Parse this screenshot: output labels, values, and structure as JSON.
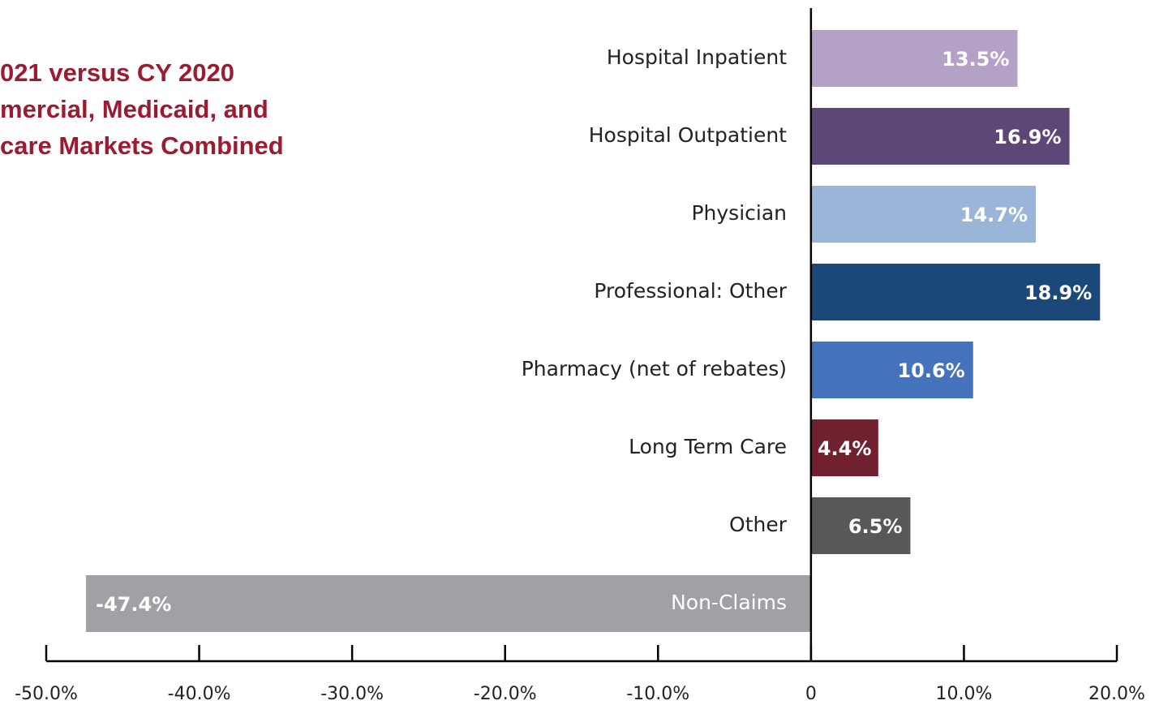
{
  "chart_data": {
    "type": "barh",
    "title": [
      "021 versus CY 2020",
      "mercial, Medicaid, and",
      "care Markets Combined"
    ],
    "categories": [
      "Hospital Inpatient",
      "Hospital Outpatient",
      "Physician",
      "Professional: Other",
      "Pharmacy (net of rebates)",
      "Long Term Care",
      "Other",
      "Non-Claims"
    ],
    "values": [
      13.5,
      16.9,
      14.7,
      18.9,
      10.6,
      4.4,
      6.5,
      -47.4
    ],
    "value_labels": [
      "13.5%",
      "16.9%",
      "14.7%",
      "18.9%",
      "10.6%",
      "4.4%",
      "6.5%",
      "-47.4%"
    ],
    "colors": [
      "#b3a1c7",
      "#5c4776",
      "#9bb5d8",
      "#1b4879",
      "#4472bb",
      "#70202f",
      "#58585a",
      "#a0a1a4"
    ],
    "xlim": [
      -50,
      20
    ],
    "xticks": [
      {
        "value": -50,
        "label": "-50.0%"
      },
      {
        "value": -40,
        "label": "-40.0%"
      },
      {
        "value": -30,
        "label": "-30.0%"
      },
      {
        "value": -20,
        "label": "-20.0%"
      },
      {
        "value": -10,
        "label": "-10.0%"
      },
      0,
      {
        "value": 10,
        "label": "10.0%"
      },
      {
        "value": 20,
        "label": "20.0%"
      }
    ]
  }
}
